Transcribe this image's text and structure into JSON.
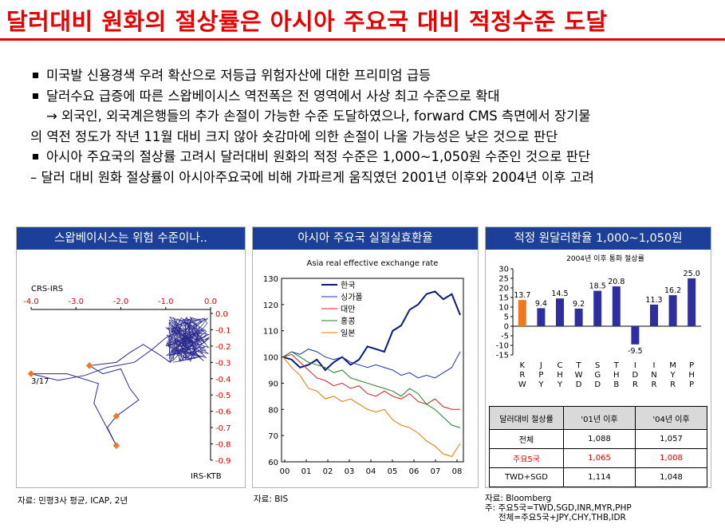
{
  "title": "달러대비 원화의 절상률은 아시아 주요국 대비 적정수준 도달",
  "bullets": [
    "미국발 신용경색 우려 확산으로 저등급 위험자산에 대한 프리미엄 급등",
    "달러수요 급증에 따른 스왑베이시스 역전폭은 전 영역에서 사상 최고 수준으로 확대",
    "→ 외국인, 외국계은행들의 추가 손절이 가능한 수준 도달하였으나, forward CMS 측면에서 장기물",
    "의 역전 정도가 작년 11월 대비 크지 않아 숏감마에 의한 손절이 나올 가능성은 낮은 것으로 판단",
    "아시아 주요국의 절상률 고려시 달러대비 원화의 적정 수준은 1,000~1,050원 수준인 것으로 판단",
    "달러 대비 원화 절상률이 아시아주요국에 비해 가파르게 움직였던 2001년 이후와 2004년 이후 고려"
  ],
  "dash_mark": "–",
  "panels": {
    "p1": {
      "header": "스왑베이시스는 위험 수준이나..",
      "source": "자료: 민평3사 평균, ICAP, 2년"
    },
    "p2": {
      "header": "아시아 주요국 실질실효환율",
      "source": "자료: BIS"
    },
    "p3": {
      "header": "적정 원달러환율 1,000~1,050원",
      "source_lines": [
        "자료: Bloomberg",
        "주: 주요5국=TWD,SGD,INR,MYR,PHP",
        "전체=주요5국+JPY,CHY,THB,IDR"
      ]
    }
  },
  "chart_data": [
    {
      "type": "scatter",
      "x_axis_label": "CRS-IRS",
      "y_axis_label": "IRS-KTB",
      "x_ticks": [
        "-4.0",
        "-3.0",
        "-2.0",
        "-1.0",
        "0.0"
      ],
      "y_ticks": [
        "0.0",
        "-0.1",
        "-0.2",
        "-0.3",
        "-0.4",
        "-0.5",
        "-0.6",
        "-0.7",
        "-0.8",
        "-0.9"
      ],
      "xlim": [
        -4.0,
        0.0
      ],
      "ylim": [
        -0.9,
        0.0
      ],
      "annotation": "3/17",
      "highlight_points": [
        {
          "x": -4.0,
          "y": -0.37
        },
        {
          "x": -2.7,
          "y": -0.32
        },
        {
          "x": -2.1,
          "y": -0.63
        },
        {
          "x": -2.1,
          "y": -0.81
        }
      ],
      "path": [
        [
          -0.2,
          -0.05
        ],
        [
          -0.6,
          -0.15
        ],
        [
          -0.9,
          -0.3
        ],
        [
          -1.1,
          -0.26
        ],
        [
          -1.5,
          -0.19
        ],
        [
          -1.8,
          -0.24
        ],
        [
          -2.1,
          -0.3
        ],
        [
          -2.7,
          -0.32
        ],
        [
          -2.4,
          -0.37
        ],
        [
          -2.0,
          -0.34
        ],
        [
          -1.8,
          -0.46
        ],
        [
          -1.6,
          -0.53
        ],
        [
          -2.1,
          -0.63
        ],
        [
          -2.3,
          -0.7
        ],
        [
          -2.1,
          -0.81
        ],
        [
          -2.6,
          -0.55
        ],
        [
          -2.5,
          -0.43
        ],
        [
          -3.2,
          -0.37
        ],
        [
          -4.0,
          -0.37
        ],
        [
          -3.4,
          -0.41
        ],
        [
          -2.8,
          -0.38
        ],
        [
          -2.3,
          -0.33
        ],
        [
          -1.7,
          -0.3
        ],
        [
          -1.3,
          -0.22
        ],
        [
          -1.0,
          -0.15
        ],
        [
          -0.8,
          -0.12
        ],
        [
          -0.6,
          -0.1
        ]
      ],
      "cluster": {
        "x_range": [
          -1.0,
          0.0
        ],
        "y_range": [
          -0.3,
          -0.02
        ]
      }
    },
    {
      "type": "line",
      "title": "Asia real effective exchange rate",
      "x_ticks": [
        "00",
        "01",
        "02",
        "03",
        "04",
        "05",
        "06",
        "07",
        "08"
      ],
      "ylim": [
        60,
        130
      ],
      "y_ticks": [
        60,
        70,
        80,
        90,
        100,
        110,
        120,
        130
      ],
      "series": [
        {
          "name": "한국",
          "color": "#0a1a80",
          "values": [
            100,
            99,
            96,
            97,
            99,
            95,
            98,
            100,
            97,
            99,
            104,
            103,
            102,
            110,
            112,
            118,
            120,
            124,
            125,
            122,
            124,
            116
          ]
        },
        {
          "name": "싱가폴",
          "color": "#1c34b8",
          "values": [
            100,
            102,
            101,
            103,
            102,
            100,
            99,
            100,
            98,
            97,
            96,
            97,
            96,
            95,
            93,
            94,
            92,
            93,
            92,
            94,
            96,
            102
          ]
        },
        {
          "name": "대만",
          "color": "#d21f1f",
          "values": [
            100,
            101,
            98,
            95,
            92,
            91,
            89,
            90,
            88,
            89,
            86,
            85,
            87,
            85,
            84,
            86,
            83,
            82,
            84,
            81,
            80,
            80
          ]
        },
        {
          "name": "홍콩",
          "color": "#2a7a2a",
          "values": [
            100,
            102,
            100,
            98,
            97,
            96,
            94,
            95,
            92,
            91,
            90,
            89,
            88,
            87,
            85,
            88,
            86,
            82,
            80,
            77,
            74,
            73
          ]
        },
        {
          "name": "일본",
          "color": "#e07800",
          "values": [
            100,
            96,
            93,
            88,
            87,
            84,
            85,
            83,
            84,
            82,
            80,
            79,
            80,
            76,
            74,
            73,
            71,
            68,
            66,
            63,
            62,
            67
          ]
        }
      ]
    },
    {
      "type": "bar",
      "title": "2004년 이후 통화 절상률",
      "categories": [
        "KRW",
        "JPY",
        "CHY",
        "TWD",
        "SGD",
        "THB",
        "IDR",
        "INR",
        "MYR",
        "PHP"
      ],
      "values": [
        13.7,
        9.4,
        14.5,
        9.2,
        18.5,
        20.8,
        -9.5,
        11.3,
        16.2,
        25.0
      ],
      "value_labels": [
        "13.7",
        "9.4",
        "14.5",
        "9.2",
        "18.5",
        "20.8",
        "-9.5",
        "11.3",
        "16.2",
        "25.0"
      ],
      "highlight_color": "#f07820",
      "bar_color": "#2e2e9e",
      "ylim": [
        -15,
        30
      ],
      "y_ticks": [
        30,
        25,
        20,
        15,
        10,
        5,
        0,
        -5,
        -10,
        -15
      ]
    },
    {
      "type": "table",
      "header": [
        "달러대비 절상률",
        "'01년 이후",
        "'04년 이후"
      ],
      "rows": [
        [
          "전체",
          "1,088",
          "1,057"
        ],
        [
          "주요5국",
          "1,065",
          "1,008"
        ],
        [
          "TWD+SGD",
          "1,114",
          "1,048"
        ]
      ],
      "highlight_row": 1
    }
  ]
}
